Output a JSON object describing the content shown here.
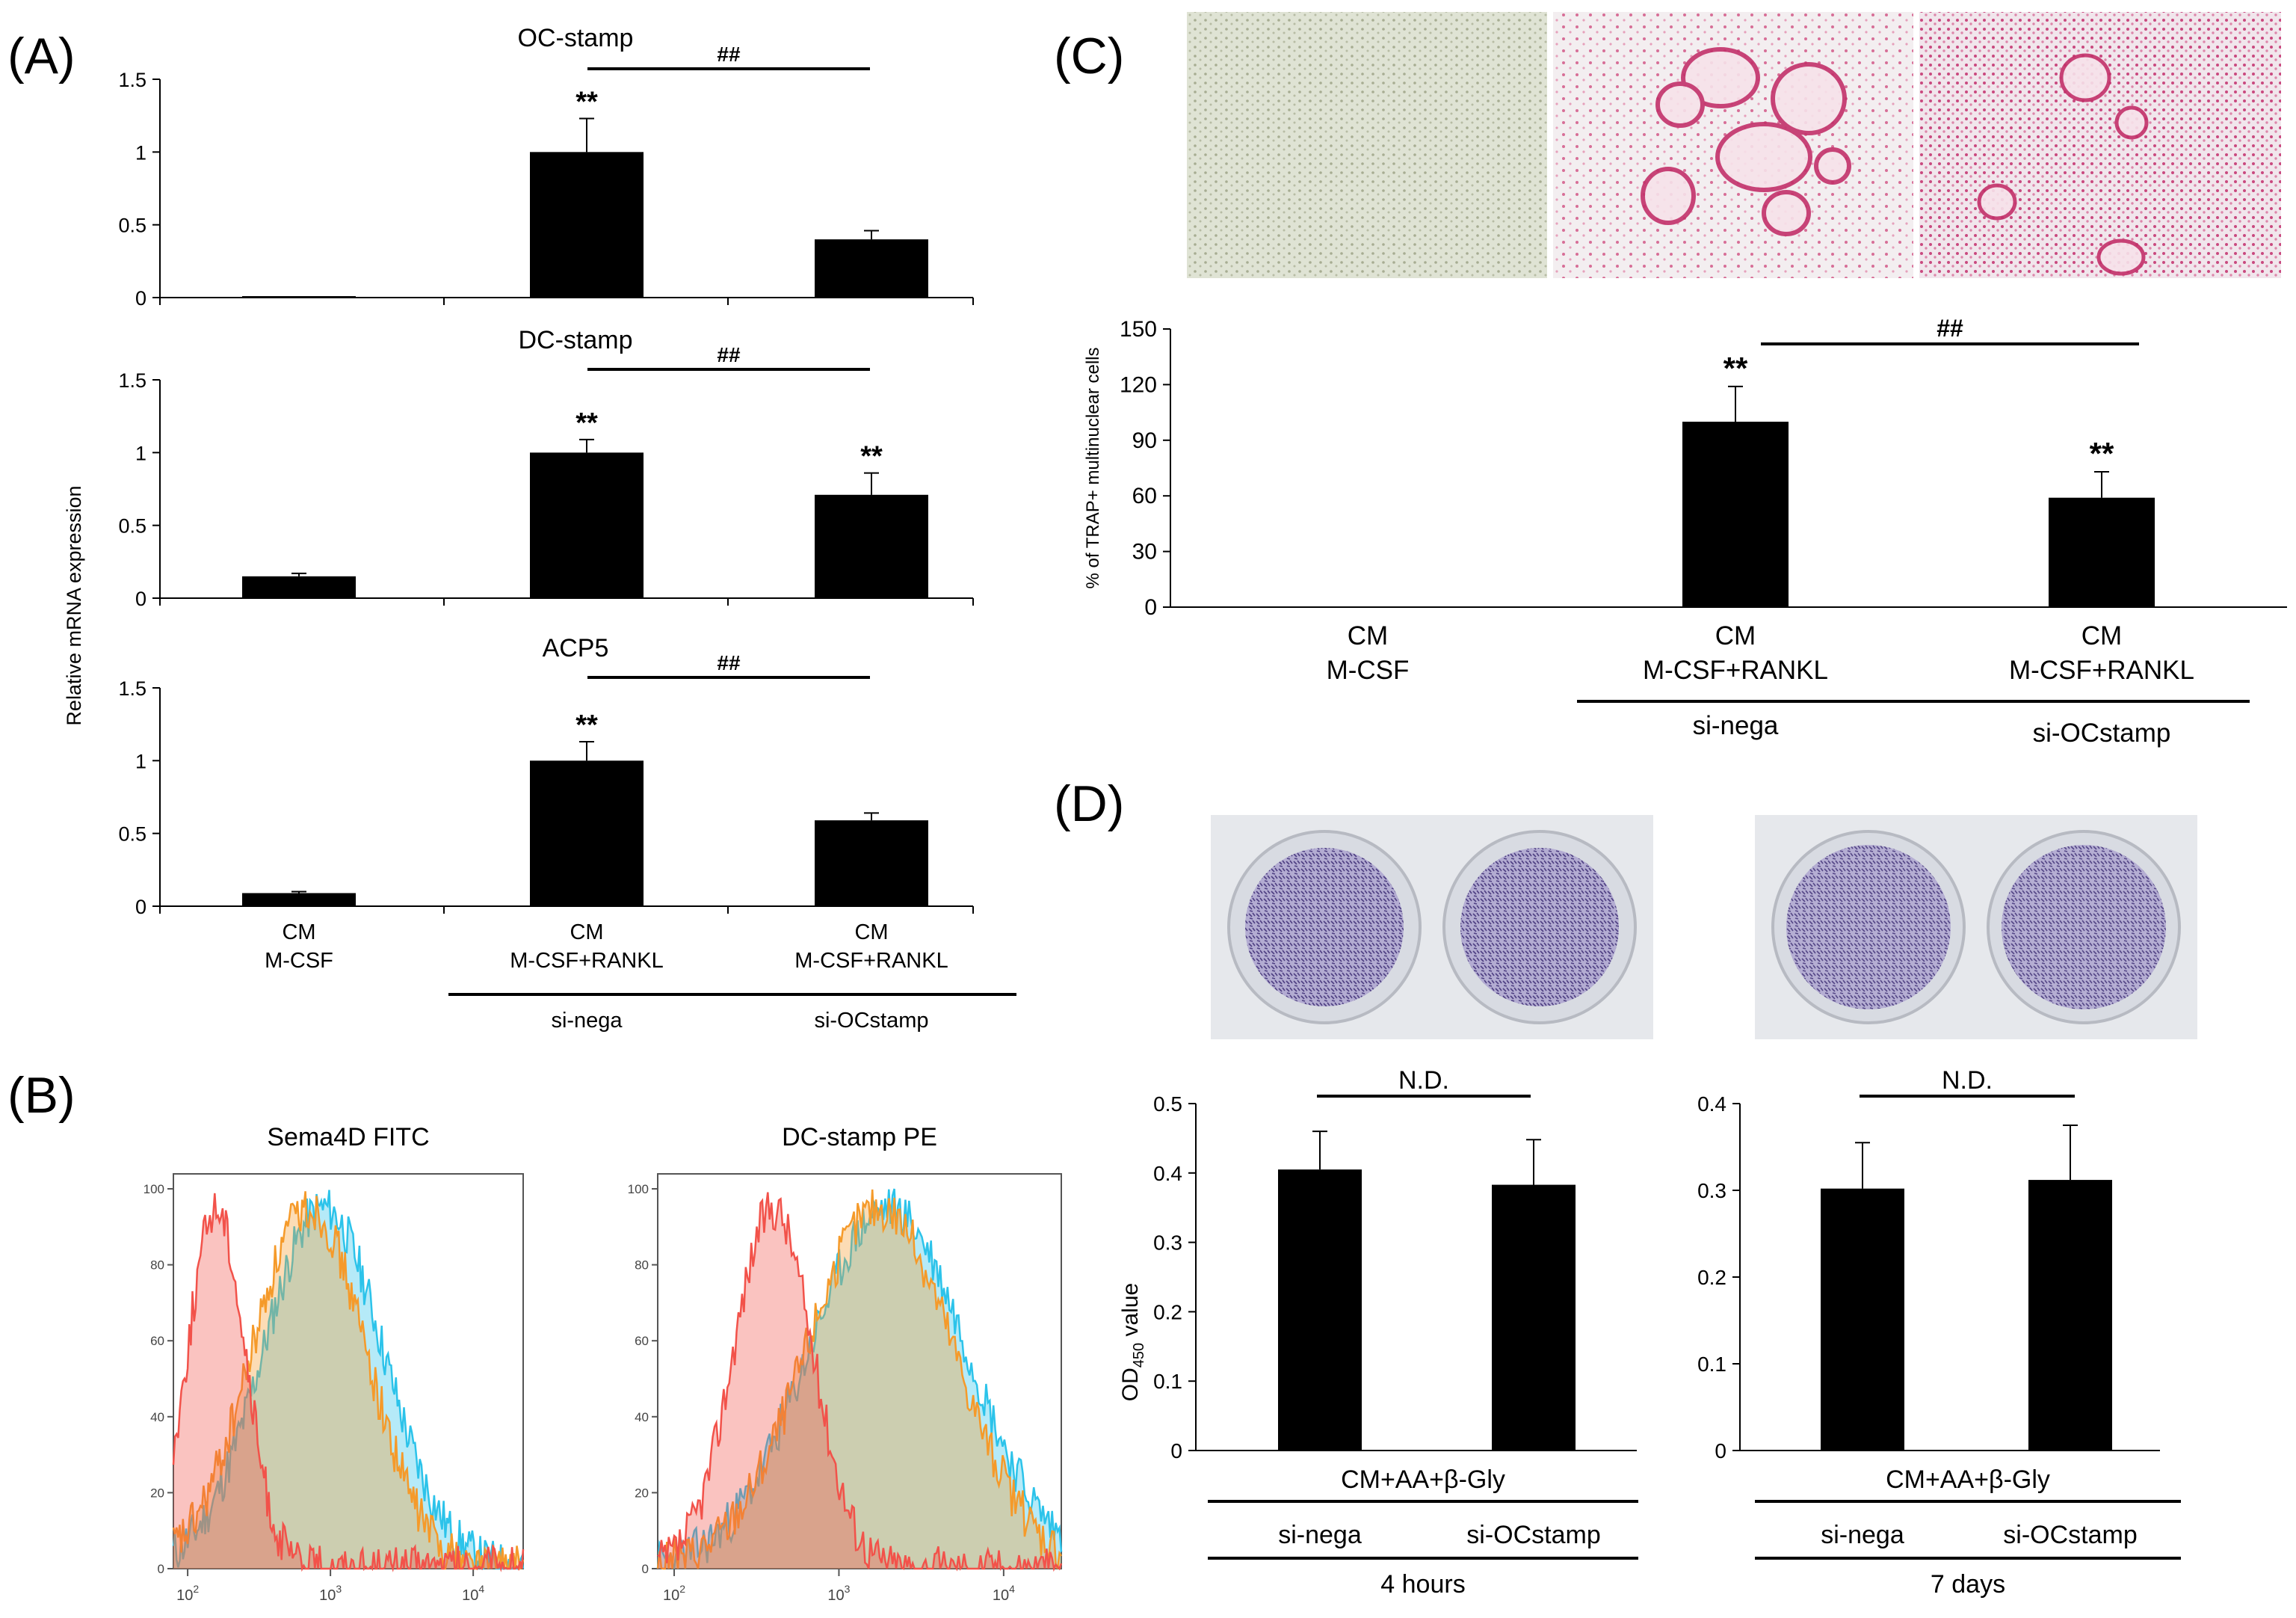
{
  "panel_labels": {
    "A": "(A)",
    "B": "(B)",
    "C": "(C)",
    "D": "(D)"
  },
  "colors": {
    "bar": "#000000",
    "flow_red": "#f2524a",
    "flow_orange": "#f59a2a",
    "flow_cyan": "#2cc3ea",
    "trap_stain": "#c3316a",
    "plate_purple": "#5a4a8a"
  },
  "chart_data": [
    {
      "id": "A1",
      "type": "bar",
      "title": "OC-stamp",
      "categories": [
        "CM M-CSF",
        "CM M-CSF+RANKL si-nega",
        "CM M-CSF+RANKL si-OCstamp"
      ],
      "values": [
        0.01,
        1.0,
        0.4
      ],
      "errors": [
        0.0,
        0.23,
        0.06
      ],
      "ylim": [
        0,
        1.5
      ],
      "yticks": [
        "0",
        "0.5",
        "1",
        "1.5"
      ],
      "stars": [
        "",
        "**",
        ""
      ],
      "bracket_label": "##"
    },
    {
      "id": "A2",
      "type": "bar",
      "title": "DC-stamp",
      "categories": [
        "CM M-CSF",
        "CM M-CSF+RANKL si-nega",
        "CM M-CSF+RANKL si-OCstamp"
      ],
      "values": [
        0.15,
        1.0,
        0.71
      ],
      "errors": [
        0.02,
        0.09,
        0.15
      ],
      "ylim": [
        0,
        1.5
      ],
      "yticks": [
        "0",
        "0.5",
        "1",
        "1.5"
      ],
      "stars": [
        "",
        "**",
        "**"
      ],
      "bracket_label": "##"
    },
    {
      "id": "A3",
      "type": "bar",
      "title": "ACP5",
      "categories": [
        "CM M-CSF",
        "CM M-CSF+RANKL si-nega",
        "CM M-CSF+RANKL si-OCstamp"
      ],
      "values": [
        0.09,
        1.0,
        0.59
      ],
      "errors": [
        0.01,
        0.13,
        0.05
      ],
      "ylim": [
        0,
        1.5
      ],
      "yticks": [
        "0",
        "0.5",
        "1",
        "1.5"
      ],
      "stars": [
        "",
        "**",
        ""
      ],
      "bracket_label": "##"
    },
    {
      "id": "C",
      "type": "bar",
      "ylabel": "% of TRAP+ multinuclear cells",
      "categories": [
        "CM M-CSF",
        "CM M-CSF+RANKL si-nega",
        "CM M-CSF+RANKL si-OCstamp"
      ],
      "values": [
        0,
        100,
        59
      ],
      "errors": [
        0,
        19,
        14
      ],
      "ylim": [
        0,
        150
      ],
      "yticks": [
        "0",
        "30",
        "60",
        "90",
        "120",
        "150"
      ],
      "stars": [
        "",
        "**",
        "**"
      ],
      "bracket_label": "##"
    },
    {
      "id": "D1",
      "type": "bar",
      "subtitle": "4 hours",
      "categories": [
        "si-nega",
        "si-OCstamp"
      ],
      "values": [
        0.405,
        0.383
      ],
      "errors": [
        0.055,
        0.065
      ],
      "ylim": [
        0,
        0.5
      ],
      "yticks": [
        "0",
        "0.1",
        "0.2",
        "0.3",
        "0.4",
        "0.5"
      ],
      "bracket_label": "N.D."
    },
    {
      "id": "D2",
      "type": "bar",
      "subtitle": "7 days",
      "categories": [
        "si-nega",
        "si-OCstamp"
      ],
      "values": [
        0.302,
        0.312
      ],
      "errors": [
        0.053,
        0.063
      ],
      "ylim": [
        0,
        0.4
      ],
      "yticks": [
        "0",
        "0.1",
        "0.2",
        "0.3",
        "0.4"
      ],
      "bracket_label": "N.D."
    },
    {
      "id": "B1",
      "type": "area",
      "title": "Sema4D FITC",
      "yticks": [
        "0",
        "20",
        "40",
        "60",
        "80",
        "100"
      ],
      "series": [
        {
          "name": "red",
          "peak_log10": 2.2,
          "width": 0.2
        },
        {
          "name": "orange",
          "peak_log10": 2.85,
          "width": 0.4
        },
        {
          "name": "cyan",
          "peak_log10": 2.95,
          "width": 0.42
        }
      ]
    },
    {
      "id": "B2",
      "type": "area",
      "title": "DC-stamp PE",
      "yticks": [
        "0",
        "20",
        "40",
        "60",
        "80",
        "100"
      ],
      "series": [
        {
          "name": "red",
          "peak_log10": 2.6,
          "width": 0.24
        },
        {
          "name": "orange",
          "peak_log10": 3.25,
          "width": 0.45
        },
        {
          "name": "cyan",
          "peak_log10": 3.3,
          "width": 0.48
        }
      ]
    }
  ],
  "panelA": {
    "ylabel": "Relative mRNA expression",
    "xlabels": [
      [
        "CM",
        "M-CSF"
      ],
      [
        "CM",
        "M-CSF+RANKL"
      ],
      [
        "CM",
        "M-CSF+RANKL"
      ]
    ],
    "groups": [
      "si-nega",
      "si-OCstamp"
    ]
  },
  "panelB": {
    "xticks": [
      "10",
      "10",
      "10"
    ],
    "xtick_exp": [
      "2",
      "3",
      "4"
    ]
  },
  "panelC": {
    "xlabels": [
      [
        "CM",
        "M-CSF"
      ],
      [
        "CM",
        "M-CSF+RANKL"
      ],
      [
        "CM",
        "M-CSF+RANKL"
      ]
    ],
    "groups": [
      "si-nega",
      "si-OCstamp"
    ]
  },
  "panelD": {
    "ylabel_main": "OD",
    "ylabel_sub": "450",
    "ylabel_rest": " value",
    "treatment": "CM+AA+β-Gly"
  }
}
